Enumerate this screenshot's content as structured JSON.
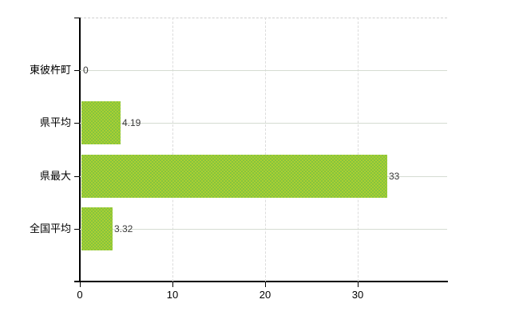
{
  "chart_data": {
    "type": "bar",
    "orientation": "horizontal",
    "title": "",
    "categories": [
      "東彼杵町",
      "県平均",
      "県最大",
      "全国平均"
    ],
    "values": [
      0,
      4.19,
      33,
      3.32
    ],
    "data_labels": [
      "0",
      "4.19",
      "33",
      "3.32"
    ],
    "x_ticks": [
      "0",
      "10",
      "20",
      "30"
    ],
    "x_tick_values": [
      0,
      10,
      20,
      30
    ],
    "xlim": [
      0,
      39.7
    ],
    "grid": true,
    "legend": "none",
    "colors": {
      "bar_base": "#9cca3b",
      "bar_dither_light": "#aacf33",
      "bar_dither_dark": "#85c43e",
      "h_gridline": "#d5dcd2",
      "v_gridline": "#dcdcdc",
      "plot_top_border": "#d0d0d0",
      "axis": "#000000",
      "category_text": "#000000",
      "value_text": "#3a3a3a",
      "background": "#ffffff"
    }
  }
}
